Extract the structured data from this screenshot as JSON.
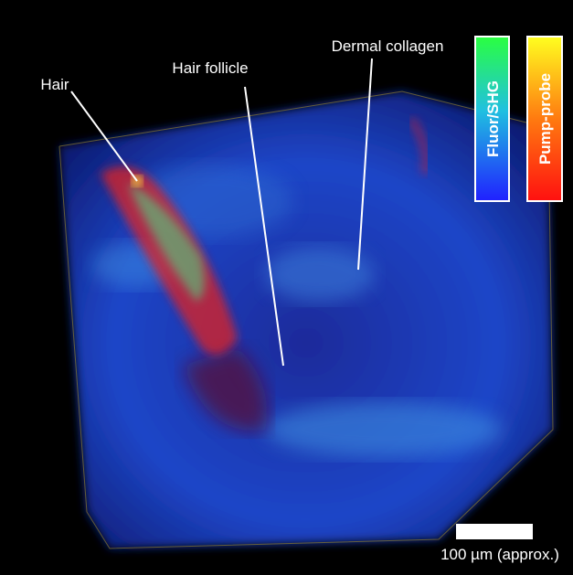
{
  "annotations": {
    "hair": "Hair",
    "hair_follicle": "Hair follicle",
    "dermal_collagen": "Dermal collagen"
  },
  "colorbars": {
    "left": "Fluor/SHG",
    "right": "Pump-probe"
  },
  "scale_bar": "100 µm (approx.)"
}
